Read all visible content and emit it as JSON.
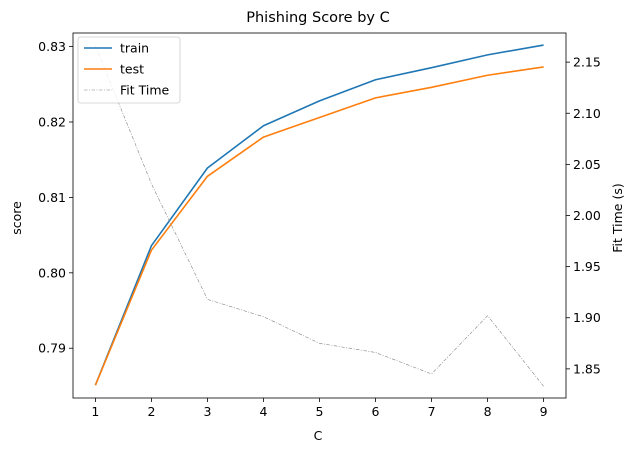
{
  "chart_data": {
    "type": "line",
    "title": "Phishing Score by C",
    "xlabel": "C",
    "ylabel": "score",
    "y2label": "Fit Time (s)",
    "x": [
      1,
      2,
      3,
      4,
      5,
      6,
      7,
      8,
      9
    ],
    "xticks": [
      "1",
      "2",
      "3",
      "4",
      "5",
      "6",
      "7",
      "8",
      "9"
    ],
    "xlim": [
      0.6,
      9.4
    ],
    "ylim": [
      0.7834,
      0.8318
    ],
    "yticks": [
      "0.79",
      "0.80",
      "0.81",
      "0.82",
      "0.83"
    ],
    "y2lim": [
      1.8215,
      2.1785
    ],
    "y2ticks": [
      "1.85",
      "1.90",
      "1.95",
      "2.00",
      "2.05",
      "2.10",
      "2.15"
    ],
    "legend_position": "upper left",
    "series": [
      {
        "name": "train",
        "axis": "left",
        "color": "#1f77b4",
        "style": "solid",
        "values": [
          0.7851,
          0.8036,
          0.8139,
          0.8195,
          0.8228,
          0.8256,
          0.8272,
          0.8289,
          0.8302
        ]
      },
      {
        "name": "test",
        "axis": "left",
        "color": "#ff7f0e",
        "style": "solid",
        "values": [
          0.7851,
          0.803,
          0.8128,
          0.818,
          0.8206,
          0.8232,
          0.8246,
          0.8262,
          0.8273
        ]
      },
      {
        "name": "Fit Time",
        "axis": "right",
        "color": "#808080",
        "style": "dashdot",
        "values": [
          2.166,
          2.031,
          1.918,
          1.901,
          1.875,
          1.866,
          1.845,
          1.902,
          1.833
        ]
      }
    ]
  }
}
